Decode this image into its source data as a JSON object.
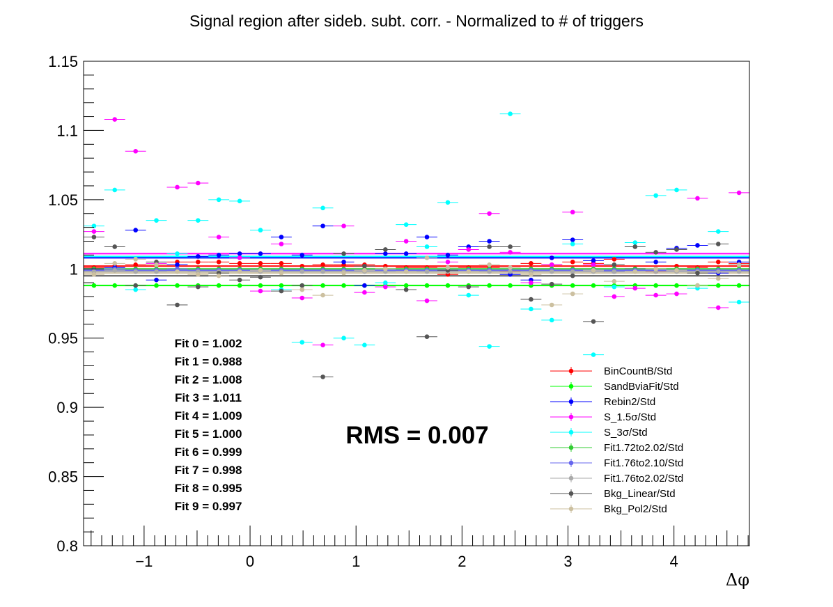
{
  "chart_data": {
    "type": "scatter",
    "title": "Signal region after sideb. subt. corr. - Normalized to # of triggers",
    "xlabel": "Δφ",
    "ylabel": "",
    "xlim": [
      -1.571,
      4.712
    ],
    "ylim": [
      0.8,
      1.15
    ],
    "xticks": [
      -1,
      0,
      1,
      2,
      3,
      4
    ],
    "xtick_labels": [
      "−1",
      "0",
      "1",
      "2",
      "3",
      "4"
    ],
    "yticks": [
      0.8,
      0.85,
      0.9,
      0.95,
      1.0,
      1.05,
      1.1,
      1.15
    ],
    "ytick_labels": [
      "0.8",
      "0.85",
      "0.9",
      "0.95",
      "1",
      "1.05",
      "1.1",
      "1.15"
    ],
    "bin_half_width": 0.0982,
    "x": [
      -1.473,
      -1.277,
      -1.08,
      -0.884,
      -0.687,
      -0.491,
      -0.295,
      -0.098,
      0.098,
      0.295,
      0.491,
      0.687,
      0.884,
      1.08,
      1.277,
      1.473,
      1.669,
      1.866,
      2.062,
      2.258,
      2.455,
      2.651,
      2.847,
      3.044,
      3.24,
      3.436,
      3.633,
      3.829,
      4.025,
      4.222,
      4.418,
      4.614
    ],
    "series": [
      {
        "name": "BinCountB/Std",
        "color": "#ff0000",
        "fit": 1.002,
        "values": [
          1.001,
          1.002,
          1.003,
          1.003,
          1.005,
          1.005,
          1.005,
          1.004,
          1.004,
          1.004,
          1.002,
          1.003,
          1.003,
          1.003,
          1.002,
          1.001,
          1.001,
          0.996,
          1.001,
          1.001,
          0.998,
          1.004,
          1.003,
          1.005,
          1.004,
          1.007,
          1.0,
          0.998,
          1.002,
          1.001,
          1.005,
          1.004
        ]
      },
      {
        "name": "SandBviaFit/Std",
        "color": "#00ff00",
        "fit": 0.988,
        "values": [
          0.988,
          0.988,
          0.988,
          0.988,
          0.988,
          0.988,
          0.988,
          0.988,
          0.988,
          0.988,
          0.988,
          0.988,
          0.988,
          0.988,
          0.988,
          0.988,
          0.988,
          0.988,
          0.988,
          0.988,
          0.988,
          0.988,
          0.988,
          0.988,
          0.988,
          0.988,
          0.988,
          0.988,
          0.988,
          0.988,
          0.988,
          0.988
        ]
      },
      {
        "name": "Rebin2/Std",
        "color": "#0000ff",
        "fit": 1.008,
        "values": [
          1.0,
          1.001,
          1.028,
          0.992,
          1.003,
          1.009,
          1.01,
          1.011,
          1.011,
          1.023,
          1.01,
          1.031,
          1.005,
          0.988,
          1.011,
          1.011,
          1.023,
          1.01,
          1.016,
          1.02,
          0.996,
          0.992,
          1.008,
          1.021,
          1.006,
          0.998,
          1.0,
          1.005,
          1.015,
          1.017,
          0.997,
          1.005
        ]
      },
      {
        "name": "S_1.5σ/Std",
        "color": "#ff00ff",
        "fit": 1.011,
        "values": [
          1.027,
          1.108,
          1.085,
          1.004,
          1.059,
          1.062,
          1.023,
          1.008,
          0.984,
          1.018,
          0.979,
          0.945,
          1.031,
          0.983,
          0.987,
          1.02,
          0.977,
          1.005,
          1.014,
          1.04,
          1.012,
          0.99,
          1.003,
          1.041,
          1.003,
          0.98,
          0.986,
          0.981,
          0.982,
          1.051,
          0.972,
          1.055
        ]
      },
      {
        "name": "S_3σ/Std",
        "color": "#00ffff",
        "fit": 1.009,
        "values": [
          1.031,
          1.057,
          0.985,
          1.035,
          1.011,
          1.035,
          1.05,
          1.049,
          1.028,
          0.985,
          0.947,
          1.044,
          0.95,
          0.945,
          0.99,
          1.032,
          1.016,
          1.048,
          0.981,
          0.944,
          1.112,
          0.971,
          0.963,
          1.018,
          0.938,
          0.987,
          1.019,
          1.053,
          1.057,
          0.986,
          1.027,
          0.976
        ]
      },
      {
        "name": "Fit1.72to2.02/Std",
        "color": "#33cc33",
        "fit": 1.0,
        "values": [
          1.0,
          1.0,
          1.0,
          1.0,
          1.0,
          1.0,
          1.0,
          1.0,
          1.0,
          1.0,
          1.0,
          1.0,
          1.0,
          1.0,
          1.0,
          1.0,
          1.0,
          1.0,
          1.0,
          1.0,
          1.0,
          1.0,
          1.0,
          1.0,
          1.0,
          1.0,
          1.0,
          1.0,
          1.0,
          1.0,
          1.0,
          1.0
        ]
      },
      {
        "name": "Fit1.76to2.10/Std",
        "color": "#6666ee",
        "fit": 0.999,
        "values": [
          0.999,
          1.0,
          0.999,
          0.999,
          1.0,
          0.999,
          0.999,
          0.999,
          0.999,
          0.999,
          0.999,
          0.999,
          0.999,
          0.999,
          0.999,
          0.999,
          0.999,
          0.999,
          0.999,
          0.999,
          0.999,
          0.999,
          0.999,
          0.999,
          0.999,
          0.999,
          0.999,
          0.999,
          0.999,
          0.999,
          0.999,
          0.999
        ]
      },
      {
        "name": "Fit1.76to2.02/Std",
        "color": "#aaaaaa",
        "fit": 0.998,
        "values": [
          0.998,
          0.999,
          0.998,
          0.998,
          0.998,
          0.998,
          0.998,
          0.998,
          0.998,
          0.998,
          0.998,
          0.998,
          0.998,
          0.998,
          0.998,
          0.998,
          0.998,
          0.998,
          0.998,
          0.998,
          0.998,
          0.998,
          0.998,
          0.998,
          0.998,
          0.998,
          0.998,
          0.998,
          0.998,
          0.998,
          0.998,
          0.998
        ]
      },
      {
        "name": "Bkg_Linear/Std",
        "color": "#555555",
        "fit": 0.995,
        "values": [
          1.023,
          1.016,
          0.988,
          1.005,
          0.974,
          0.987,
          0.997,
          0.992,
          0.994,
          0.984,
          0.988,
          0.922,
          1.011,
          1.002,
          1.014,
          0.985,
          0.951,
          0.999,
          0.987,
          1.016,
          1.016,
          0.978,
          0.989,
          0.995,
          0.962,
          1.003,
          1.016,
          1.012,
          1.014,
          0.997,
          1.018,
          1.003
        ]
      },
      {
        "name": "Bkg_Pol2/Std",
        "color": "#ccc0a0",
        "fit": 0.997,
        "values": [
          0.996,
          1.004,
          1.007,
          1.003,
          0.998,
          0.996,
          0.995,
          0.998,
          0.999,
          0.997,
          0.985,
          0.981,
          0.997,
          0.999,
          1.0,
          0.998,
          1.008,
          1.001,
          0.998,
          1.003,
          1.001,
          0.996,
          0.974,
          0.982,
          0.999,
          0.991,
          0.998,
          1.0,
          0.999,
          0.988,
          0.993,
          1.003
        ]
      }
    ],
    "fit_labels": [
      "Fit 0 = 1.002",
      "Fit 1 = 0.988",
      "Fit 2 = 1.008",
      "Fit 3 = 1.011",
      "Fit 4 = 1.009",
      "Fit 5 = 1.000",
      "Fit 6 = 0.999",
      "Fit 7 = 0.998",
      "Fit 8 = 0.995",
      "Fit 9 = 0.997"
    ],
    "rms_label": "RMS = 0.007",
    "legend_position": "bottom-right"
  }
}
